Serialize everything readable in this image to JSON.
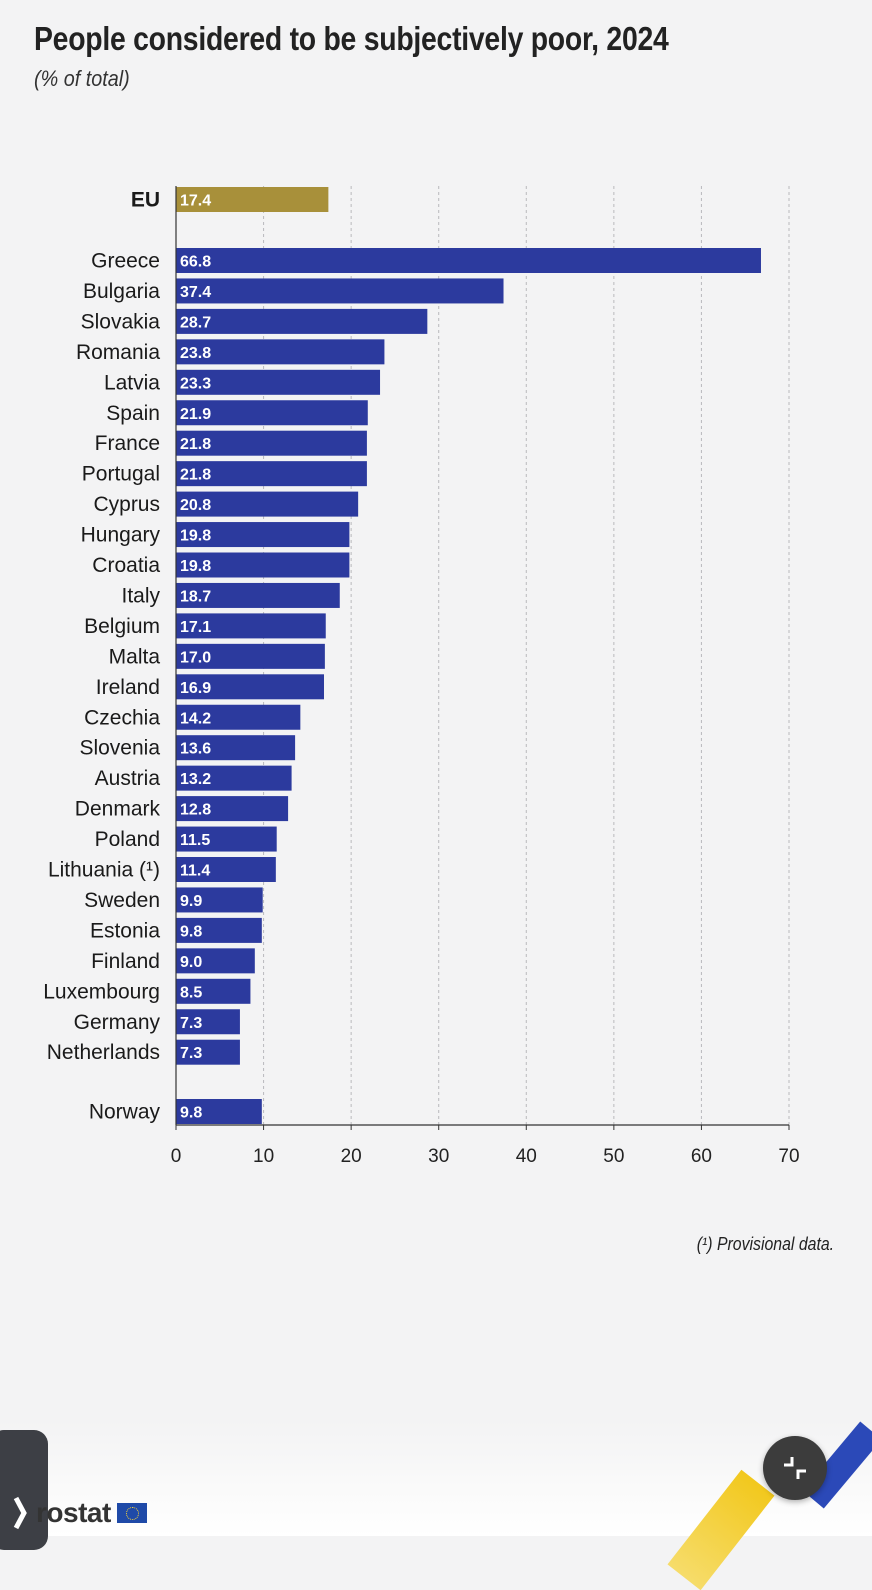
{
  "chart_data": {
    "type": "bar",
    "orientation": "horizontal",
    "title": "People considered to be subjectively poor, 2024",
    "subtitle": "(% of total)",
    "categories": [
      "EU",
      "Greece",
      "Bulgaria",
      "Slovakia",
      "Romania",
      "Latvia",
      "Spain",
      "France",
      "Portugal",
      "Cyprus",
      "Hungary",
      "Croatia",
      "Italy",
      "Belgium",
      "Malta",
      "Ireland",
      "Czechia",
      "Slovenia",
      "Austria",
      "Denmark",
      "Poland",
      "Lithuania (¹)",
      "Sweden",
      "Estonia",
      "Finland",
      "Luxembourg",
      "Germany",
      "Netherlands",
      "Norway"
    ],
    "values": [
      17.4,
      66.8,
      37.4,
      28.7,
      23.8,
      23.3,
      21.9,
      21.8,
      21.8,
      20.8,
      19.8,
      19.8,
      18.7,
      17.1,
      17.0,
      16.9,
      14.2,
      13.6,
      13.2,
      12.8,
      11.5,
      11.4,
      9.9,
      9.8,
      9.0,
      8.5,
      7.3,
      7.3,
      9.8
    ],
    "value_labels": [
      "17.4",
      "66.8",
      "37.4",
      "28.7",
      "23.8",
      "23.3",
      "21.9",
      "21.8",
      "21.8",
      "20.8",
      "19.8",
      "19.8",
      "18.7",
      "17.1",
      "17.0",
      "16.9",
      "14.2",
      "13.6",
      "13.2",
      "12.8",
      "11.5",
      "11.4",
      "9.9",
      "9.8",
      "9.0",
      "8.5",
      "7.3",
      "7.3",
      "9.8"
    ],
    "groups": [
      "eu",
      "member",
      "member",
      "member",
      "member",
      "member",
      "member",
      "member",
      "member",
      "member",
      "member",
      "member",
      "member",
      "member",
      "member",
      "member",
      "member",
      "member",
      "member",
      "member",
      "member",
      "member",
      "member",
      "member",
      "member",
      "member",
      "member",
      "member",
      "efta"
    ],
    "xlim": [
      0,
      70
    ],
    "xticks": [
      "0",
      "10",
      "20",
      "30",
      "40",
      "50",
      "60",
      "70"
    ],
    "grid": "vertical dashed",
    "colors": {
      "eu": "#a8903a",
      "member": "#2c3a9e",
      "efta": "#2c3a9e"
    },
    "footnote": "(¹) Provisional data."
  },
  "branding": {
    "logo_text": "rostat"
  },
  "fab": {
    "icon": "collapse-icon"
  }
}
